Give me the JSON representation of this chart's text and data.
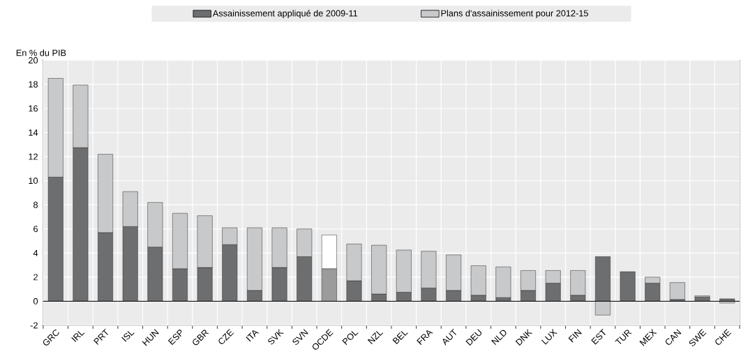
{
  "chart_data": {
    "type": "bar",
    "stacked": true,
    "ylabel": "En % du PIB",
    "categories": [
      "GRC",
      "IRL",
      "PRT",
      "ISL",
      "HUN",
      "ESP",
      "GBR",
      "CZE",
      "ITA",
      "SVK",
      "SVN",
      "OCDE",
      "POL",
      "NZL",
      "BEL",
      "FRA",
      "AUT",
      "DEU",
      "NLD",
      "DNK",
      "LUX",
      "FIN",
      "EST",
      "TUR",
      "MEX",
      "CAN",
      "SWE",
      "CHE"
    ],
    "series": [
      {
        "name": "Assainissement appliqué de 2009-11",
        "color": "#6d6e70",
        "colors": [
          "#6d6e70",
          "#6d6e70",
          "#6d6e70",
          "#6d6e70",
          "#6d6e70",
          "#6d6e70",
          "#6d6e70",
          "#6d6e70",
          "#6d6e70",
          "#6d6e70",
          "#6d6e70",
          "#9b9b9b",
          "#6d6e70",
          "#6d6e70",
          "#6d6e70",
          "#6d6e70",
          "#6d6e70",
          "#6d6e70",
          "#6d6e70",
          "#6d6e70",
          "#6d6e70",
          "#6d6e70",
          "#6d6e70",
          "#6d6e70",
          "#6d6e70",
          "#6d6e70",
          "#6d6e70",
          "#6d6e70"
        ],
        "values": [
          10.3,
          12.75,
          5.7,
          6.2,
          4.5,
          2.7,
          2.8,
          4.7,
          0.9,
          2.8,
          3.7,
          2.7,
          1.7,
          0.6,
          0.75,
          1.1,
          0.9,
          0.5,
          0.3,
          0.9,
          1.5,
          0.5,
          3.7,
          2.45,
          1.5,
          0.15,
          0.35,
          0.2
        ]
      },
      {
        "name": "Plans d'assainissement pour 2012-15",
        "color": "#c8c9cb",
        "colors": [
          "#c8c9cb",
          "#c8c9cb",
          "#c8c9cb",
          "#c8c9cb",
          "#c8c9cb",
          "#c8c9cb",
          "#c8c9cb",
          "#c8c9cb",
          "#c8c9cb",
          "#c8c9cb",
          "#c8c9cb",
          "#ffffff",
          "#c8c9cb",
          "#c8c9cb",
          "#c8c9cb",
          "#c8c9cb",
          "#c8c9cb",
          "#c8c9cb",
          "#c8c9cb",
          "#c8c9cb",
          "#c8c9cb",
          "#c8c9cb",
          "#c8c9cb",
          "#c8c9cb",
          "#c8c9cb",
          "#c8c9cb",
          "#c8c9cb",
          "#c8c9cb"
        ],
        "values": [
          8.2,
          5.2,
          6.5,
          2.9,
          3.7,
          4.6,
          4.3,
          1.4,
          5.2,
          3.3,
          2.3,
          2.8,
          3.05,
          4.05,
          3.5,
          3.05,
          2.95,
          2.45,
          2.55,
          1.65,
          1.05,
          2.05,
          -1.15,
          0,
          0.5,
          1.4,
          0.1,
          -0.15
        ]
      }
    ],
    "ylim": [
      -2,
      20
    ],
    "yticks": [
      -2,
      0,
      2,
      4,
      6,
      8,
      10,
      12,
      14,
      16,
      18,
      20
    ],
    "grid": true,
    "legend": "top"
  }
}
